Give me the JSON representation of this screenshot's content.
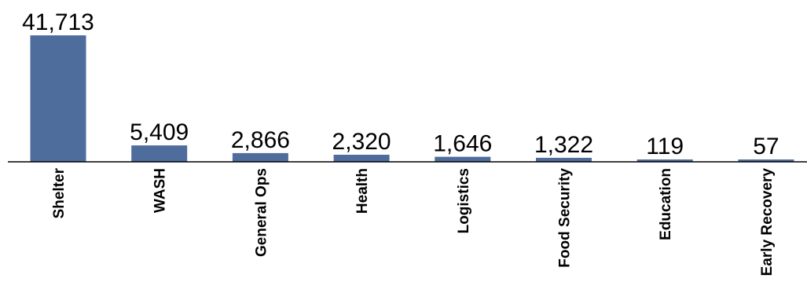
{
  "chart_data": {
    "type": "bar",
    "title": "",
    "xlabel": "",
    "ylabel": "",
    "categories": [
      "Shelter",
      "WASH",
      "General Ops",
      "Health",
      "Logistics",
      "Food Security",
      "Education",
      "Early Recovery"
    ],
    "values": [
      41713,
      5409,
      2866,
      2320,
      1646,
      1322,
      119,
      57
    ],
    "value_labels": [
      "41,713",
      "5,409",
      "2,866",
      "2,320",
      "1,646",
      "1,322",
      "119",
      "57"
    ],
    "ylim": [
      0,
      41713
    ],
    "grid": false,
    "legend": "none",
    "bar_color": "#4e6c9c",
    "axis_color": "#000000"
  }
}
